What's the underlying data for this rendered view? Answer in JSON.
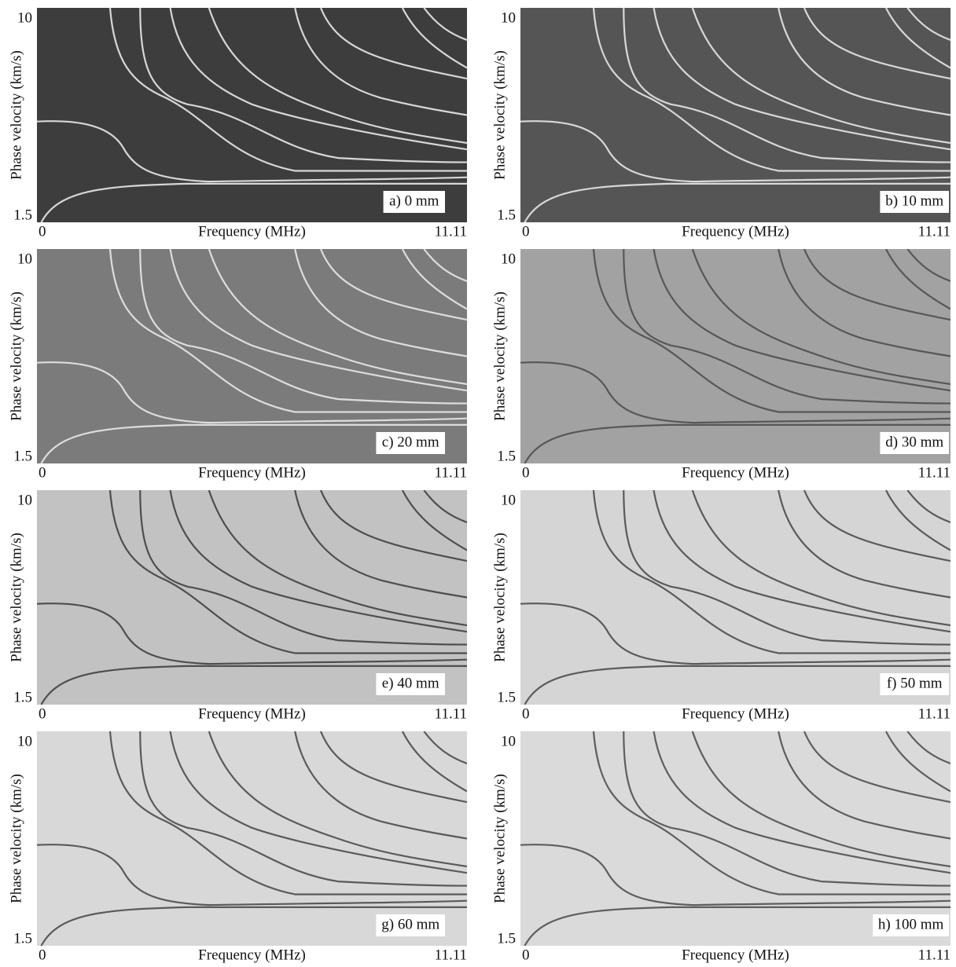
{
  "chart_data": [
    {
      "type": "image",
      "label": "a) 0 mm",
      "x_label": "Frequency (MHz)",
      "y_label": "Phase velocity (km/s)",
      "xlim": [
        0,
        11.11
      ],
      "ylim": [
        1.5,
        10
      ],
      "xticks": [
        0,
        11.11
      ],
      "yticks": [
        1.5,
        10
      ],
      "background": "#3d3d3d",
      "curve_color": "#f2f2f2"
    },
    {
      "type": "image",
      "label": "b) 10 mm",
      "x_label": "Frequency (MHz)",
      "y_label": "Phase velocity (km/s)",
      "xlim": [
        0,
        11.11
      ],
      "ylim": [
        1.5,
        10
      ],
      "xticks": [
        0,
        11.11
      ],
      "yticks": [
        1.5,
        10
      ],
      "background": "#555555",
      "curve_color": "#f0f0f0"
    },
    {
      "type": "image",
      "label": "c) 20 mm",
      "x_label": "Frequency (MHz)",
      "y_label": "Phase velocity (km/s)",
      "xlim": [
        0,
        11.11
      ],
      "ylim": [
        1.5,
        10
      ],
      "xticks": [
        0,
        11.11
      ],
      "yticks": [
        1.5,
        10
      ],
      "background": "#7b7b7b",
      "curve_color": "#eeeeee"
    },
    {
      "type": "image",
      "label": "d) 30 mm",
      "x_label": "Frequency (MHz)",
      "y_label": "Phase velocity (km/s)",
      "xlim": [
        0,
        11.11
      ],
      "ylim": [
        1.5,
        10
      ],
      "xticks": [
        0,
        11.11
      ],
      "yticks": [
        1.5,
        10
      ],
      "background": "#a2a2a2",
      "curve_color": "#4a4a4a"
    },
    {
      "type": "image",
      "label": "e) 40 mm",
      "x_label": "Frequency (MHz)",
      "y_label": "Phase velocity (km/s)",
      "xlim": [
        0,
        11.11
      ],
      "ylim": [
        1.5,
        10
      ],
      "xticks": [
        0,
        11.11
      ],
      "yticks": [
        1.5,
        10
      ],
      "background": "#c2c2c2",
      "curve_color": "#3a3a3a"
    },
    {
      "type": "image",
      "label": "f) 50 mm",
      "x_label": "Frequency (MHz)",
      "y_label": "Phase velocity (km/s)",
      "xlim": [
        0,
        11.11
      ],
      "ylim": [
        1.5,
        10
      ],
      "xticks": [
        0,
        11.11
      ],
      "yticks": [
        1.5,
        10
      ],
      "background": "#d5d5d5",
      "curve_color": "#444444"
    },
    {
      "type": "image",
      "label": "g) 60 mm",
      "x_label": "Frequency (MHz)",
      "y_label": "Phase velocity (km/s)",
      "xlim": [
        0,
        11.11
      ],
      "ylim": [
        1.5,
        10
      ],
      "xticks": [
        0,
        11.11
      ],
      "yticks": [
        1.5,
        10
      ],
      "background": "#d8d8d8",
      "curve_color": "#444444"
    },
    {
      "type": "image",
      "label": "h) 100 mm",
      "x_label": "Frequency (MHz)",
      "y_label": "Phase velocity (km/s)",
      "xlim": [
        0,
        11.11
      ],
      "ylim": [
        1.5,
        10
      ],
      "xticks": [
        0,
        11.11
      ],
      "yticks": [
        1.5,
        10
      ],
      "background": "#dadada",
      "curve_color": "#484848"
    }
  ]
}
